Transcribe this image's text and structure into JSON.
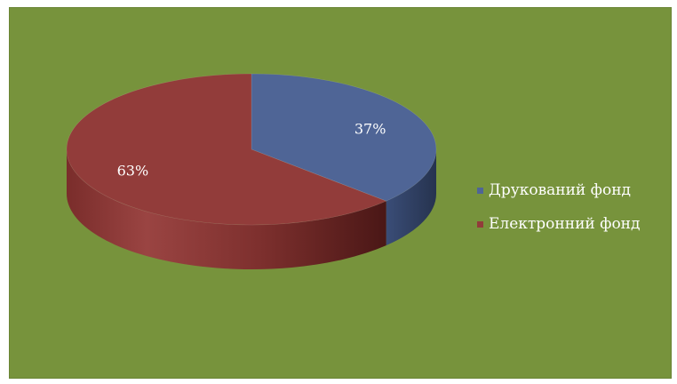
{
  "chart_data": {
    "type": "pie",
    "title": "",
    "categories": [
      "Друкований фонд",
      "Електронний фонд"
    ],
    "values": [
      37,
      63
    ],
    "data_labels": [
      "37%",
      "63%"
    ],
    "colors": [
      "#4f6596",
      "#923c3a"
    ],
    "legend_position": "right",
    "background": "#77933c",
    "style": "3d"
  }
}
